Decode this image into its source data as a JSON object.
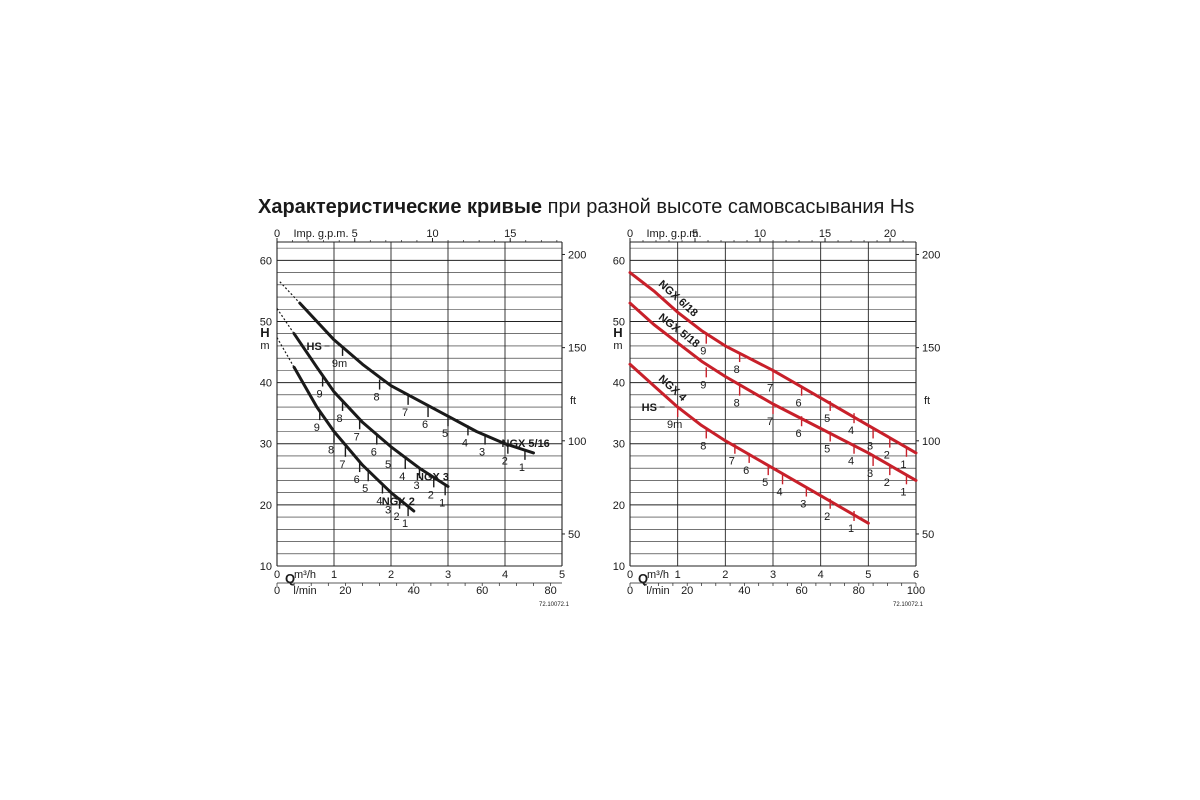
{
  "title": {
    "bold": "Характеристические кривые",
    "rest": " при разной высоте самовсасывания Hs"
  },
  "colors": {
    "black_curves": "#1a1a1a",
    "red_curves": "#c8202a"
  },
  "chart_data": [
    {
      "type": "line",
      "axes": {
        "y_left": {
          "label": "H",
          "unit": "m",
          "ticks": [
            "10",
            "20",
            "30",
            "40",
            "50",
            "60"
          ],
          "range": [
            10,
            63
          ]
        },
        "y_right": {
          "unit": "ft",
          "ticks": [
            "50",
            "100",
            "150",
            "200"
          ]
        },
        "x_top": {
          "label": "Imp. g.p.m.",
          "ticks": [
            "0",
            "5",
            "10",
            "15"
          ]
        },
        "x_bottom_m3h": {
          "label": "Q",
          "unit": "m³/h",
          "ticks": [
            "0",
            "1",
            "2",
            "3",
            "4",
            "5"
          ],
          "range": [
            0,
            5
          ]
        },
        "x_bottom_lmin": {
          "unit": "l/min",
          "ticks": [
            "0",
            "20",
            "40",
            "60",
            "80"
          ]
        }
      },
      "grid": true,
      "ref_code": "72.10072.1",
      "hs_label": "HS",
      "hs_value": "9m",
      "series": [
        {
          "name": "NGX 5/16",
          "x": [
            0.4,
            1.0,
            1.5,
            2.0,
            2.5,
            3.0,
            3.5,
            4.0,
            4.5
          ],
          "y": [
            53,
            47,
            43,
            39.5,
            37,
            34.5,
            32,
            30,
            28.5
          ],
          "markers": [
            {
              "label": "9m",
              "x": 1.15,
              "y": 46
            },
            {
              "label": "8",
              "x": 1.8,
              "y": 40.5
            },
            {
              "label": "7",
              "x": 2.3,
              "y": 38
            },
            {
              "label": "6",
              "x": 2.65,
              "y": 36
            },
            {
              "label": "5",
              "x": 3.0,
              "y": 34.5
            },
            {
              "label": "4",
              "x": 3.35,
              "y": 33
            },
            {
              "label": "3",
              "x": 3.65,
              "y": 31.5
            },
            {
              "label": "2",
              "x": 4.05,
              "y": 30
            },
            {
              "label": "1",
              "x": 4.35,
              "y": 29
            }
          ]
        },
        {
          "name": "NGX 3",
          "x": [
            0.3,
            0.7,
            1.0,
            1.5,
            2.0,
            2.5,
            3.0
          ],
          "y": [
            48,
            42.5,
            38.5,
            33.5,
            29.5,
            26,
            23
          ],
          "markers": [
            {
              "label": "9",
              "x": 0.8,
              "y": 41
            },
            {
              "label": "8",
              "x": 1.15,
              "y": 37
            },
            {
              "label": "7",
              "x": 1.45,
              "y": 34
            },
            {
              "label": "6",
              "x": 1.75,
              "y": 31.5
            },
            {
              "label": "5",
              "x": 2.0,
              "y": 29.5
            },
            {
              "label": "4",
              "x": 2.25,
              "y": 27.5
            },
            {
              "label": "3",
              "x": 2.5,
              "y": 26
            },
            {
              "label": "2",
              "x": 2.75,
              "y": 24.5
            },
            {
              "label": "1",
              "x": 2.95,
              "y": 23.2
            }
          ]
        },
        {
          "name": "NGX 2",
          "x": [
            0.3,
            0.7,
            1.0,
            1.5,
            2.0,
            2.4
          ],
          "y": [
            42.5,
            36,
            32,
            26.5,
            22,
            19
          ],
          "markers": [
            {
              "label": "9",
              "x": 0.75,
              "y": 35.5
            },
            {
              "label": "8",
              "x": 1.0,
              "y": 31.8
            },
            {
              "label": "7",
              "x": 1.2,
              "y": 29.5
            },
            {
              "label": "6",
              "x": 1.45,
              "y": 27
            },
            {
              "label": "5",
              "x": 1.6,
              "y": 25.5
            },
            {
              "label": "4",
              "x": 1.85,
              "y": 23.5
            },
            {
              "label": "3",
              "x": 2.0,
              "y": 22
            },
            {
              "label": "2",
              "x": 2.15,
              "y": 21
            },
            {
              "label": "1",
              "x": 2.3,
              "y": 19.8
            }
          ]
        }
      ]
    },
    {
      "type": "line",
      "axes": {
        "y_left": {
          "label": "H",
          "unit": "m",
          "ticks": [
            "10",
            "20",
            "30",
            "40",
            "50",
            "60"
          ],
          "range": [
            10,
            63
          ]
        },
        "y_right": {
          "unit": "ft",
          "ticks": [
            "50",
            "100",
            "150",
            "200"
          ]
        },
        "x_top": {
          "label": "Imp. g.p.m.",
          "ticks": [
            "0",
            "5",
            "10",
            "15",
            "20"
          ]
        },
        "x_bottom_m3h": {
          "label": "Q",
          "unit": "m³/h",
          "ticks": [
            "0",
            "1",
            "2",
            "3",
            "4",
            "5",
            "6"
          ],
          "range": [
            0,
            6
          ]
        },
        "x_bottom_lmin": {
          "unit": "l/min",
          "ticks": [
            "0",
            "20",
            "40",
            "60",
            "80",
            "100"
          ]
        }
      },
      "grid": true,
      "ref_code": "72.10072.1",
      "hs_label": "HS",
      "hs_value": "9m",
      "series": [
        {
          "name": "NGX 6/18",
          "x": [
            0.0,
            0.5,
            1.0,
            1.5,
            2.0,
            3.0,
            4.0,
            5.0,
            6.0
          ],
          "y": [
            58,
            55,
            51.5,
            48.5,
            46,
            42,
            37.5,
            33,
            28.5
          ],
          "markers": [
            {
              "label": "9",
              "x": 1.6,
              "y": 48
            },
            {
              "label": "8",
              "x": 2.3,
              "y": 45
            },
            {
              "label": "7",
              "x": 3.0,
              "y": 42
            },
            {
              "label": "6",
              "x": 3.6,
              "y": 39.5
            },
            {
              "label": "5",
              "x": 4.2,
              "y": 37
            },
            {
              "label": "4",
              "x": 4.7,
              "y": 35
            },
            {
              "label": "3",
              "x": 5.1,
              "y": 32.5
            },
            {
              "label": "2",
              "x": 5.45,
              "y": 31
            },
            {
              "label": "1",
              "x": 5.8,
              "y": 29.5
            }
          ]
        },
        {
          "name": "NGX 5/18",
          "x": [
            0.0,
            0.5,
            1.0,
            1.5,
            2.0,
            3.0,
            4.0,
            5.0,
            6.0
          ],
          "y": [
            53,
            49.5,
            46.5,
            43.5,
            41,
            36.5,
            32.5,
            28.5,
            24
          ],
          "markers": [
            {
              "label": "9",
              "x": 1.6,
              "y": 42.5
            },
            {
              "label": "8",
              "x": 2.3,
              "y": 39.5
            },
            {
              "label": "7",
              "x": 3.0,
              "y": 36.5
            },
            {
              "label": "6",
              "x": 3.6,
              "y": 34.5
            },
            {
              "label": "5",
              "x": 4.2,
              "y": 32
            },
            {
              "label": "4",
              "x": 4.7,
              "y": 30
            },
            {
              "label": "3",
              "x": 5.1,
              "y": 28
            },
            {
              "label": "2",
              "x": 5.45,
              "y": 26.5
            },
            {
              "label": "1",
              "x": 5.8,
              "y": 25
            }
          ]
        },
        {
          "name": "NGX 4",
          "x": [
            0.0,
            0.5,
            1.0,
            1.5,
            2.0,
            3.0,
            4.0,
            5.0
          ],
          "y": [
            43,
            39.5,
            36,
            33,
            30.5,
            26,
            21.5,
            17
          ],
          "markers": [
            {
              "label": "9m",
              "x": 1.0,
              "y": 36
            },
            {
              "label": "8",
              "x": 1.6,
              "y": 32.5
            },
            {
              "label": "7",
              "x": 2.2,
              "y": 30
            },
            {
              "label": "6",
              "x": 2.5,
              "y": 28.5
            },
            {
              "label": "5",
              "x": 2.9,
              "y": 26.5
            },
            {
              "label": "4",
              "x": 3.2,
              "y": 25
            },
            {
              "label": "3",
              "x": 3.7,
              "y": 23
            },
            {
              "label": "2",
              "x": 4.2,
              "y": 21
            },
            {
              "label": "1",
              "x": 4.7,
              "y": 19
            }
          ]
        }
      ]
    }
  ]
}
